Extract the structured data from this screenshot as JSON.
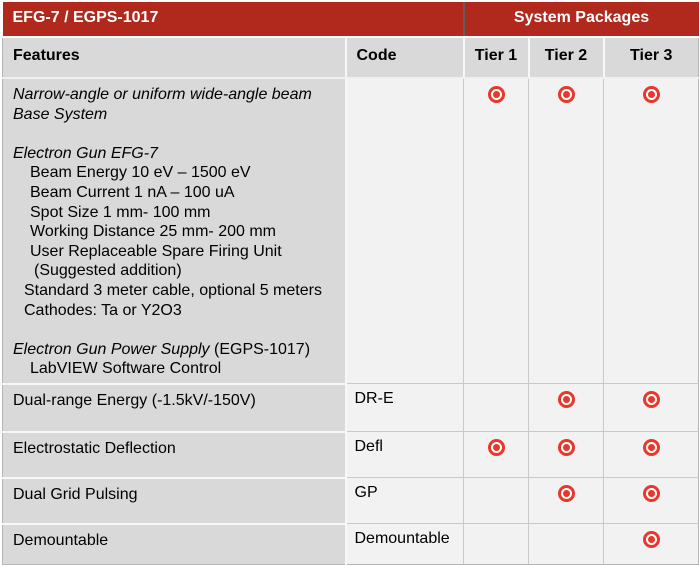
{
  "colors": {
    "banner_red": "#b1291d",
    "bullet_red": "#e7382c",
    "header_gray": "#d9d9d9",
    "cell_light": "#f2f2f2"
  },
  "header": {
    "title": "EFG-7 / EGPS-1017",
    "packages": "System Packages",
    "columns": {
      "features": "Features",
      "code": "Code",
      "tiers": [
        "Tier 1",
        "Tier 2",
        "Tier 3"
      ]
    }
  },
  "base_row": {
    "lines": [
      {
        "indent": 0,
        "italic": true,
        "text": "Narrow-angle or uniform wide-angle beam"
      },
      {
        "indent": 0,
        "italic": true,
        "text": "Base System"
      },
      {
        "blank": true
      },
      {
        "indent": 0,
        "italic": true,
        "text": "Electron Gun EFG-7"
      },
      {
        "indent": 2,
        "italic": false,
        "text": "Beam Energy 10 eV – 1500 eV"
      },
      {
        "indent": 2,
        "italic": false,
        "text": "Beam Current 1 nA – 100 uA"
      },
      {
        "indent": 2,
        "italic": false,
        "text": "Spot Size 1 mm- 100 mm"
      },
      {
        "indent": 2,
        "italic": false,
        "text": "Working Distance 25 mm- 200 mm"
      },
      {
        "indent": 2,
        "italic": false,
        "text": "User Replaceable Spare Firing Unit"
      },
      {
        "indent": 3,
        "italic": false,
        "text": "(Suggested addition)"
      },
      {
        "indent": 1,
        "italic": false,
        "text": "Standard 3 meter cable, optional 5 meters"
      },
      {
        "indent": 1,
        "italic": false,
        "text": "Cathodes: Ta or Y2O3"
      },
      {
        "blank": true
      },
      {
        "indent": 0,
        "segments": [
          {
            "text": "Electron Gun Power Supply",
            "italic": true
          },
          {
            "text": " (EGPS-1017)",
            "italic": false
          }
        ]
      },
      {
        "indent": 2,
        "italic": false,
        "text": "LabVIEW Software Control"
      }
    ],
    "code": "",
    "tiers": [
      true,
      true,
      true
    ]
  },
  "option_rows": [
    {
      "feature": "Dual-range Energy (-1.5kV/-150V)",
      "code": "DR-E",
      "tiers": [
        false,
        true,
        true
      ]
    },
    {
      "feature": "Electrostatic Deflection",
      "code": "Defl",
      "tiers": [
        true,
        true,
        true
      ]
    },
    {
      "feature": "Dual Grid Pulsing",
      "code": "GP",
      "tiers": [
        false,
        true,
        true
      ]
    },
    {
      "feature": "Demountable",
      "code": "Demountable",
      "tiers": [
        false,
        false,
        true
      ]
    }
  ],
  "bullet_icon": "red-target-dot"
}
